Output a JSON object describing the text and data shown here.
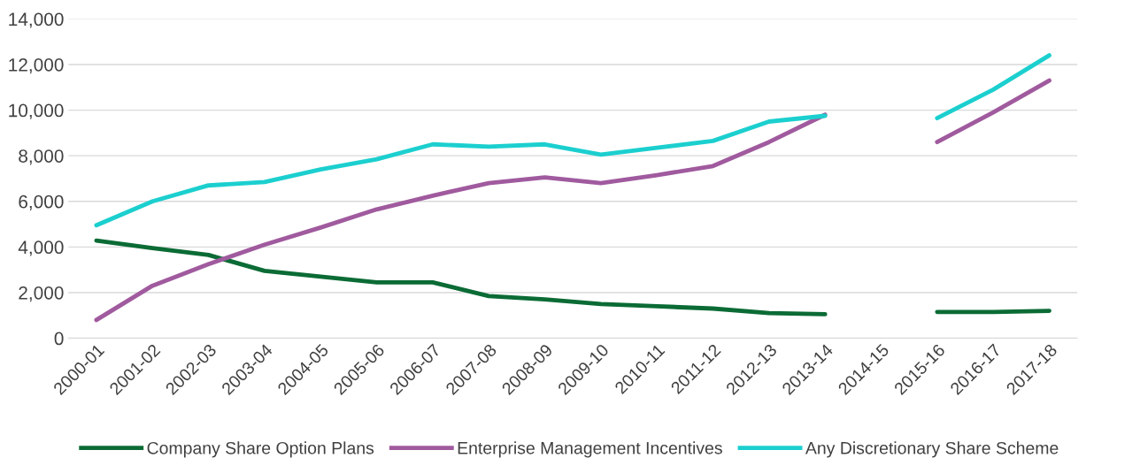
{
  "chart_data": {
    "type": "line",
    "categories": [
      "2000-01",
      "2001-02",
      "2002-03",
      "2003-04",
      "2004-05",
      "2005-06",
      "2006-07",
      "2007-08",
      "2008-09",
      "2009-10",
      "2010-11",
      "2011-12",
      "2012-13",
      "2013-14",
      "2014-15",
      "2015-16",
      "2016-17",
      "2017-18"
    ],
    "series": [
      {
        "name": "Company Share Option Plans",
        "color": "#0b6b35",
        "values": [
          4280,
          3950,
          3650,
          2950,
          2700,
          2450,
          2450,
          1850,
          1700,
          1500,
          1400,
          1300,
          1100,
          1050,
          null,
          1150,
          1150,
          1200
        ]
      },
      {
        "name": "Enterprise Management Incentives",
        "color": "#a05a9e",
        "values": [
          800,
          2300,
          3250,
          4100,
          4850,
          5650,
          6250,
          6800,
          7050,
          6800,
          7150,
          7550,
          8600,
          9800,
          null,
          8600,
          9900,
          11300
        ]
      },
      {
        "name": "Any Discretionary Share Scheme",
        "color": "#1ccfcf",
        "values": [
          4950,
          6000,
          6700,
          6850,
          7400,
          7850,
          8500,
          8400,
          8500,
          8050,
          8350,
          8650,
          9500,
          9750,
          null,
          9650,
          10900,
          12400
        ]
      }
    ],
    "ylim": [
      0,
      14000
    ],
    "yticks": [
      0,
      {
        "value": 2000,
        "label": "2,000"
      },
      {
        "value": 4000,
        "label": "4,000"
      },
      {
        "value": 6000,
        "label": "6,000"
      },
      {
        "value": 8000,
        "label": "8,000"
      },
      {
        "value": 10000,
        "label": "10,000"
      },
      {
        "value": 12000,
        "label": "12,000"
      },
      {
        "value": 14000,
        "label": "14,000"
      }
    ],
    "grid": "y",
    "legend": "bottom",
    "marker": "none",
    "line_style": "solid"
  }
}
